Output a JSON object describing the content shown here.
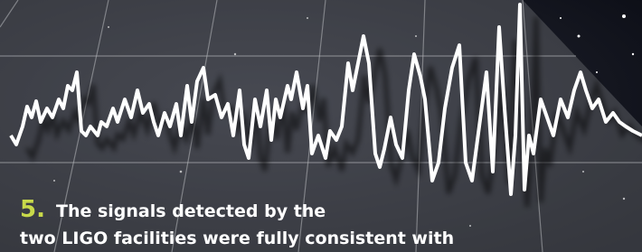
{
  "caption": {
    "number": "5.",
    "lines": [
      "The signals detected by the",
      "two LIGO facilities were fully consistent with"
    ]
  }
}
